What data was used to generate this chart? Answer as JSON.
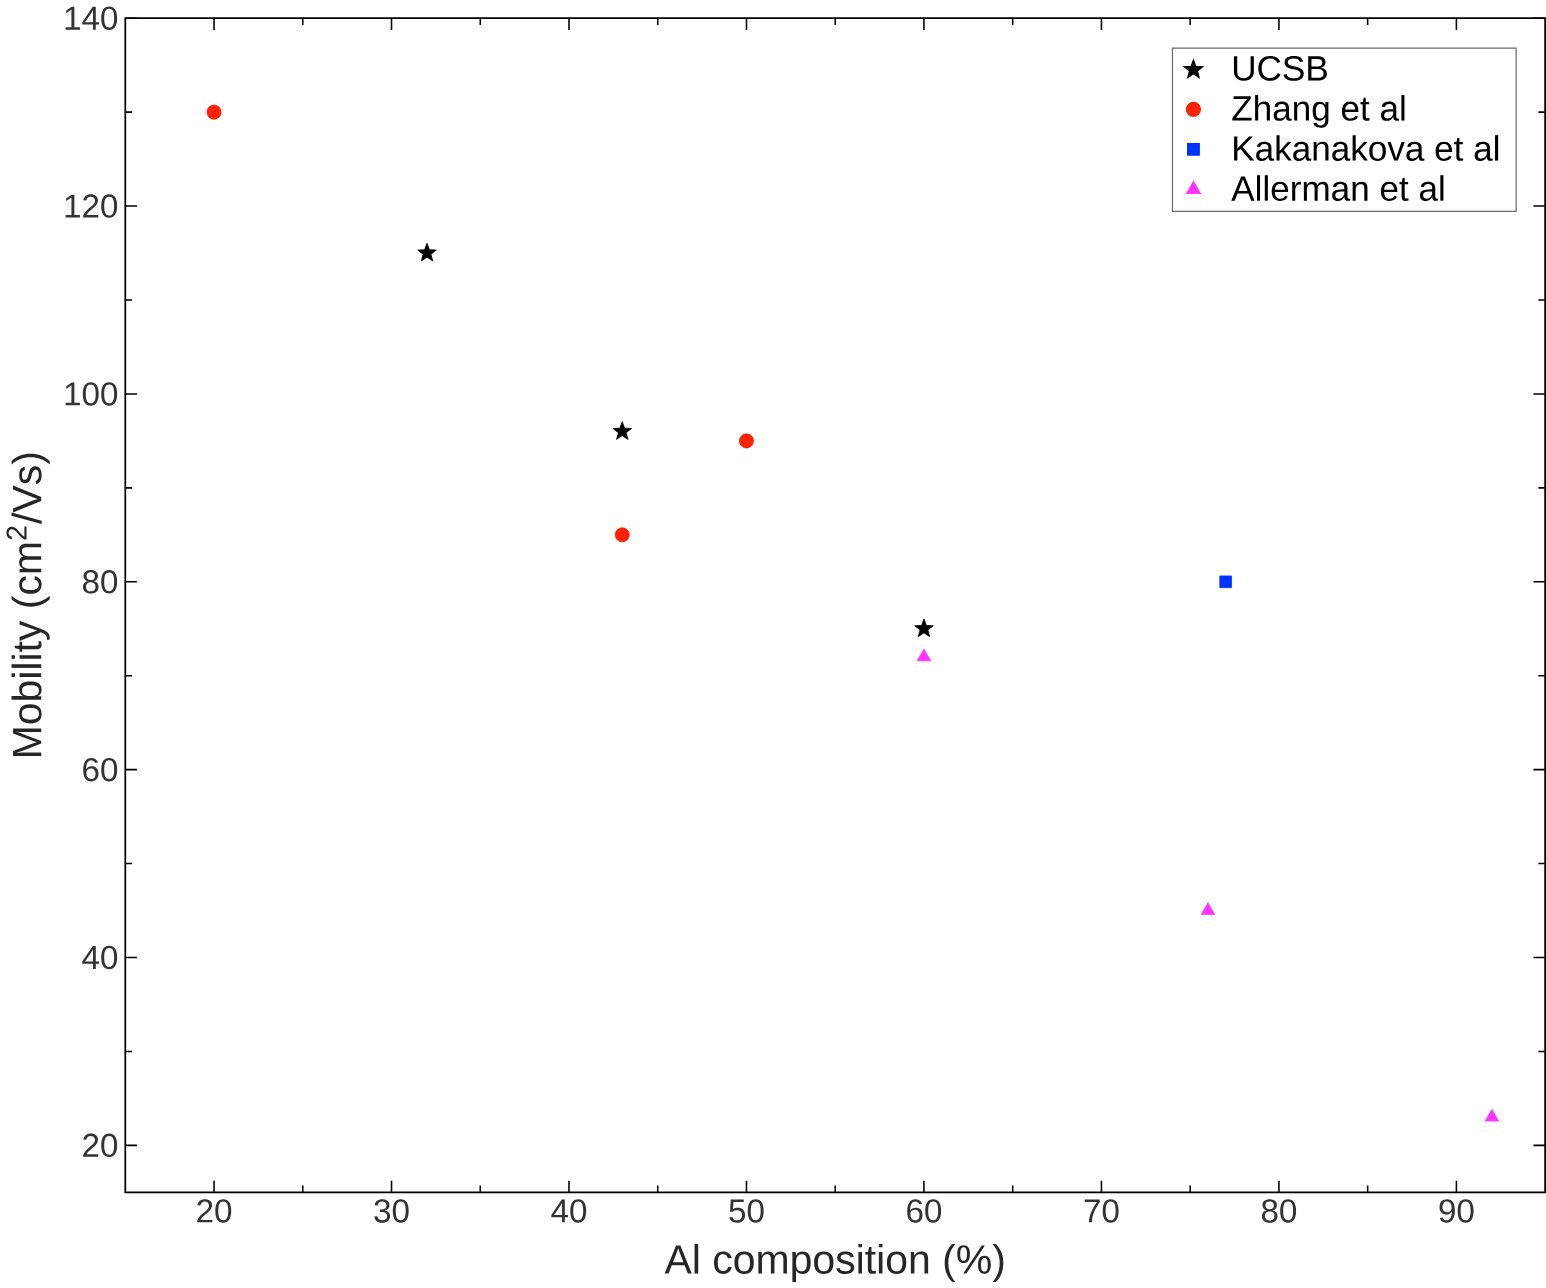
{
  "chart_data": {
    "type": "scatter",
    "xlabel": "Al composition (%)",
    "ylabel": "Mobility (cm$^{2}$/Vs)",
    "xlim": [
      15,
      95
    ],
    "ylim": [
      15,
      140
    ],
    "xticks": [
      20,
      30,
      40,
      50,
      60,
      70,
      80,
      90
    ],
    "yticks": [
      20,
      40,
      60,
      80,
      100,
      120,
      140
    ],
    "legend": "top right",
    "grid": false,
    "series": [
      {
        "name": "UCSB",
        "color": "#000000",
        "marker": "star",
        "x": [
          32,
          43,
          60
        ],
        "values": [
          115,
          96,
          75
        ]
      },
      {
        "name": "Zhang et al",
        "color": "#ff2200",
        "marker": "circle",
        "x": [
          20,
          43,
          50
        ],
        "values": [
          130,
          85,
          95
        ]
      },
      {
        "name": "Kakanakova et al",
        "color": "#0033ff",
        "marker": "square",
        "x": [
          77
        ],
        "values": [
          80
        ]
      },
      {
        "name": "Allerman et al",
        "color": "#ff33ff",
        "marker": "triangle",
        "x": [
          60,
          76,
          92
        ],
        "values": [
          72,
          45,
          23
        ]
      }
    ]
  }
}
